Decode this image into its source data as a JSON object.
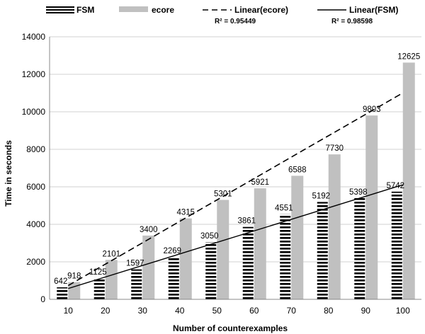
{
  "chart_data": {
    "type": "bar",
    "categories": [
      "10",
      "20",
      "30",
      "40",
      "50",
      "60",
      "70",
      "80",
      "90",
      "100"
    ],
    "series": [
      {
        "name": "FSM",
        "values": [
          642,
          1125,
          1597,
          2269,
          3050,
          3861,
          4551,
          5192,
          5398,
          5742
        ],
        "pattern": "horizontal-stripes",
        "color": "#000000"
      },
      {
        "name": "ecore",
        "values": [
          918,
          2101,
          3400,
          4315,
          5301,
          5921,
          6588,
          7730,
          9803,
          12625
        ],
        "color": "#c0c0c0"
      }
    ],
    "trendlines": [
      {
        "name": "Linear(ecore)",
        "series": "ecore",
        "style": "dashed",
        "r2_label": "R² = 0.95449"
      },
      {
        "name": "Linear(FSM)",
        "series": "FSM",
        "style": "solid",
        "r2_label": "R² = 0.98598"
      }
    ],
    "data_labels": {
      "FSM": [
        "642",
        "1125",
        "1597",
        "2269",
        "3050",
        "3861",
        "4551",
        "5192",
        "5398",
        "5742"
      ],
      "ecore": [
        "918",
        "2101",
        "3400",
        "4315",
        "5301",
        "5921",
        "6588",
        "7730",
        "9803",
        "12625"
      ]
    },
    "xlabel": "Number of counterexamples",
    "ylabel": "Time in seconds",
    "ylim": [
      0,
      14000
    ],
    "yticks": [
      "0",
      "2000",
      "4000",
      "6000",
      "8000",
      "10000",
      "12000",
      "14000"
    ],
    "grid": true,
    "legend_position": "top"
  }
}
